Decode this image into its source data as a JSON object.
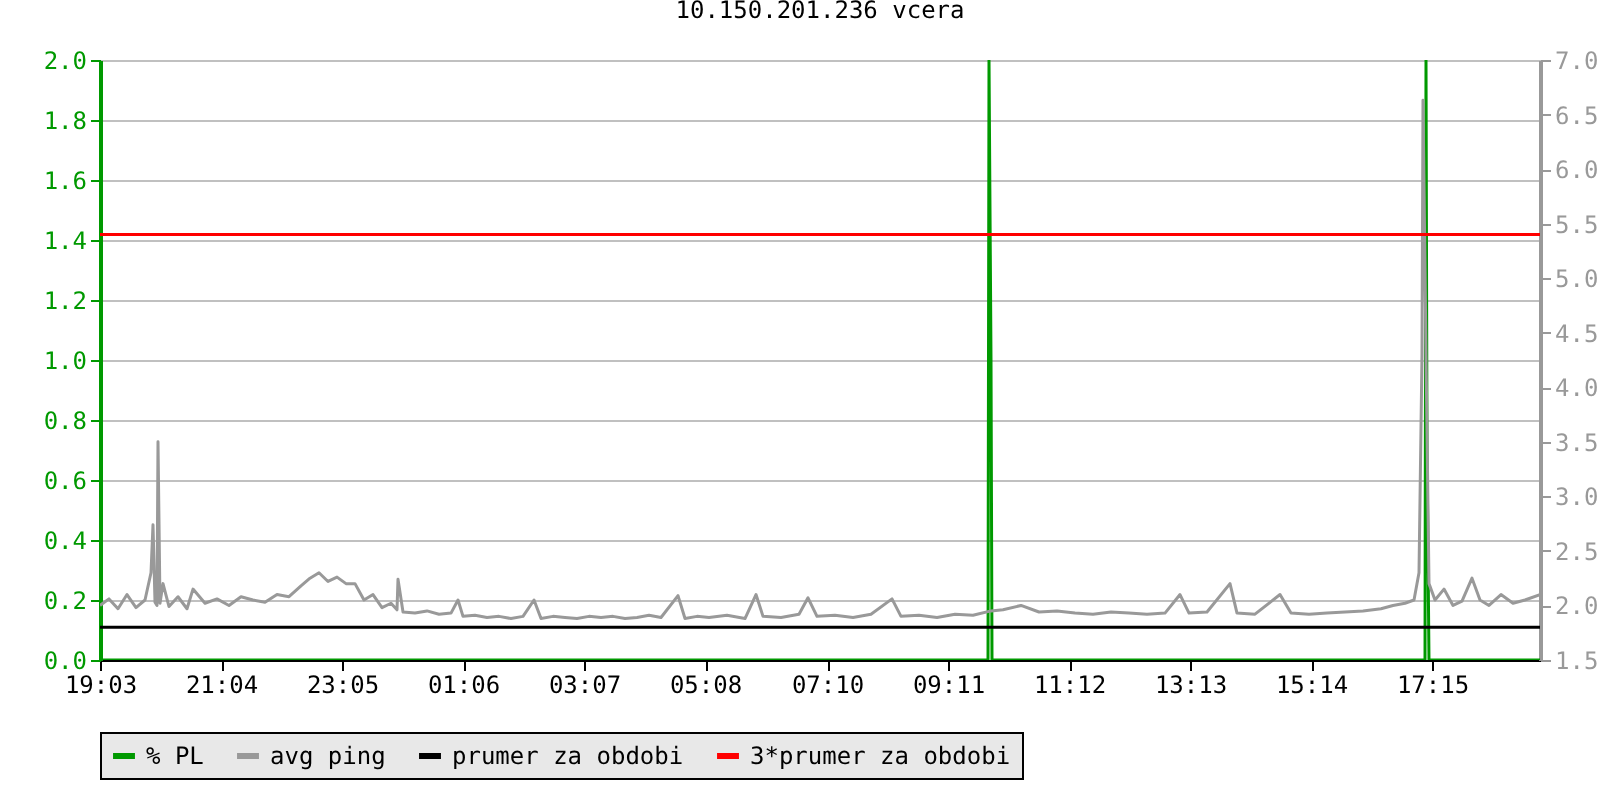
{
  "chart_data": {
    "type": "line",
    "title": "10.150.201.236 vcera",
    "xlim": [
      "--01-01T19:03",
      "--01-02T19:03"
    ],
    "xticks": [
      {
        "value": "--01-01T19:03",
        "label": "19:03"
      },
      {
        "value": "--01-01T21:04",
        "label": "21:04"
      },
      {
        "value": "--01-01T23:05",
        "label": "23:05"
      },
      {
        "value": "--01-02T01:06",
        "label": "01:06"
      },
      {
        "value": "--01-02T03:07",
        "label": "03:07"
      },
      {
        "value": "--01-02T05:08",
        "label": "05:08"
      },
      {
        "value": "--01-02T07:10",
        "label": "07:10"
      },
      {
        "value": "--01-02T09:11",
        "label": "09:11"
      },
      {
        "value": "--01-02T11:12",
        "label": "11:12"
      },
      {
        "value": "--01-02T13:13",
        "label": "13:13"
      },
      {
        "value": "--01-02T15:14",
        "label": "15:14"
      },
      {
        "value": "--01-02T17:15",
        "label": "17:15"
      }
    ],
    "ylim": [
      0,
      2
    ],
    "yticks": [
      {
        "value": 0,
        "label": "0.0"
      },
      0.2,
      0.4,
      0.6,
      0.8,
      {
        "value": 1,
        "label": "1.0"
      },
      1.2,
      1.4,
      1.6,
      1.8,
      {
        "value": 2,
        "label": "2.0"
      }
    ],
    "y2lim": [
      1.5,
      7
    ],
    "y2ticks": [
      1.5,
      {
        "value": 2,
        "label": "2.0"
      },
      2.5,
      {
        "value": 3,
        "label": "3.0"
      },
      3.5,
      {
        "value": 4,
        "label": "4.0"
      },
      4.5,
      {
        "value": 5,
        "label": "5.0"
      },
      5.5,
      {
        "value": 6,
        "label": "6.0"
      },
      6.5,
      {
        "value": 7,
        "label": "7.0"
      }
    ],
    "grid": "y",
    "legend": "bottom",
    "series": [
      {
        "name": "% PL",
        "color": "#009900",
        "x": [
          "--01-01T19:03",
          "--01-02T09:51",
          "--01-02T09:52",
          "--01-02T09:54",
          "--01-02T09:55",
          "--01-02T17:08",
          "--01-02T17:09",
          "--01-02T17:10",
          "--01-02T17:12",
          "--01-02T19:03"
        ],
        "values": [
          0,
          0,
          2.0,
          1.0,
          0,
          0,
          2.0,
          0.7,
          0,
          0
        ]
      },
      {
        "name": "avg ping",
        "color": "#999999",
        "axis": "y2",
        "x": [
          "--01-01T19:03",
          "--01-01T19:12",
          "--01-01T19:21",
          "--01-01T19:30",
          "--01-01T19:39",
          "--01-01T19:48",
          "--01-01T19:54",
          "--01-01T19:56",
          "--01-01T19:58",
          "--01-01T20:00",
          "--01-01T20:01",
          "--01-01T20:03",
          "--01-01T20:06",
          "--01-01T20:12",
          "--01-01T20:21",
          "--01-01T20:30",
          "--01-01T20:36",
          "--01-01T20:48",
          "--01-01T21:00",
          "--01-01T21:12",
          "--01-01T21:24",
          "--01-01T21:36",
          "--01-01T21:48",
          "--01-01T22:00",
          "--01-01T22:12",
          "--01-01T22:24",
          "--01-01T22:33",
          "--01-01T22:42",
          "--01-01T22:51",
          "--01-01T23:00",
          "--01-01T23:09",
          "--01-01T23:18",
          "--01-01T23:27",
          "--01-01T23:36",
          "--01-01T23:45",
          "--01-01T23:54",
          "--01-02T00:00",
          "--01-02T00:01",
          "--01-02T00:06",
          "--01-02T00:18",
          "--01-02T00:30",
          "--01-02T00:42",
          "--01-02T00:54",
          "--01-02T01:01",
          "--01-02T01:06",
          "--01-02T01:18",
          "--01-02T01:30",
          "--01-02T01:42",
          "--01-02T01:54",
          "--01-02T02:06",
          "--01-02T02:17",
          "--01-02T02:24",
          "--01-02T02:36",
          "--01-02T02:48",
          "--01-02T03:00",
          "--01-02T03:12",
          "--01-02T03:24",
          "--01-02T03:36",
          "--01-02T03:48",
          "--01-02T04:00",
          "--01-02T04:12",
          "--01-02T04:24",
          "--01-02T04:41",
          "--01-02T04:48",
          "--01-02T05:00",
          "--01-02T05:12",
          "--01-02T05:30",
          "--01-02T05:48",
          "--01-02T05:59",
          "--01-02T06:06",
          "--01-02T06:24",
          "--01-02T06:42",
          "--01-02T06:51",
          "--01-02T07:00",
          "--01-02T07:18",
          "--01-02T07:36",
          "--01-02T07:54",
          "--01-02T08:15",
          "--01-02T08:24",
          "--01-02T08:42",
          "--01-02T09:00",
          "--01-02T09:18",
          "--01-02T09:36",
          "--01-02T09:54",
          "--01-02T10:06",
          "--01-02T10:24",
          "--01-02T10:42",
          "--01-02T11:00",
          "--01-02T11:18",
          "--01-02T11:36",
          "--01-02T11:54",
          "--01-02T12:12",
          "--01-02T12:30",
          "--01-02T12:48",
          "--01-02T13:03",
          "--01-02T13:12",
          "--01-02T13:30",
          "--01-02T13:53",
          "--01-02T14:00",
          "--01-02T14:18",
          "--01-02T14:43",
          "--01-02T14:54",
          "--01-02T15:12",
          "--01-02T15:30",
          "--01-02T15:48",
          "--01-02T16:06",
          "--01-02T16:24",
          "--01-02T16:36",
          "--01-02T16:48",
          "--01-02T16:57",
          "--01-02T17:02",
          "--01-02T17:05",
          "--01-02T17:06",
          "--01-02T17:08",
          "--01-02T17:09",
          "--01-02T17:12",
          "--01-02T17:18",
          "--01-02T17:27",
          "--01-02T17:36",
          "--01-02T17:45",
          "--01-02T17:55",
          "--01-02T18:03",
          "--01-02T18:12",
          "--01-02T18:24",
          "--01-02T18:36",
          "--01-02T18:48",
          "--01-02T19:03"
        ],
        "values": [
          2.0,
          2.06,
          1.97,
          2.1,
          1.98,
          2.05,
          2.3,
          2.74,
          2.03,
          2.0,
          3.5,
          2.02,
          2.2,
          1.99,
          2.08,
          1.97,
          2.15,
          2.02,
          2.06,
          2.0,
          2.08,
          2.05,
          2.03,
          2.1,
          2.08,
          2.18,
          2.25,
          2.3,
          2.22,
          2.26,
          2.2,
          2.2,
          2.05,
          2.1,
          1.98,
          2.02,
          1.96,
          2.24,
          1.94,
          1.93,
          1.95,
          1.92,
          1.93,
          2.05,
          1.9,
          1.91,
          1.89,
          1.9,
          1.88,
          1.9,
          2.05,
          1.88,
          1.9,
          1.89,
          1.88,
          1.9,
          1.89,
          1.9,
          1.88,
          1.89,
          1.91,
          1.89,
          2.09,
          1.88,
          1.9,
          1.89,
          1.91,
          1.88,
          2.1,
          1.9,
          1.89,
          1.92,
          2.07,
          1.9,
          1.91,
          1.89,
          1.92,
          2.06,
          1.9,
          1.91,
          1.89,
          1.92,
          1.91,
          1.95,
          1.96,
          2.0,
          1.94,
          1.95,
          1.93,
          1.92,
          1.94,
          1.93,
          1.92,
          1.93,
          2.1,
          1.93,
          1.94,
          2.2,
          1.93,
          1.92,
          2.1,
          1.93,
          1.92,
          1.93,
          1.94,
          1.95,
          1.97,
          2.0,
          2.02,
          2.05,
          2.3,
          4.3,
          6.63,
          5.1,
          4.3,
          2.2,
          2.05,
          2.15,
          2.0,
          2.04,
          2.25,
          2.05,
          2.0,
          2.1,
          2.02,
          2.05,
          2.1
        ]
      },
      {
        "name": "prumer za obdobi",
        "color": "#000000",
        "axis": "y2",
        "x": [
          "--01-01T19:03",
          "--01-02T19:03"
        ],
        "values": [
          1.8,
          1.8
        ]
      },
      {
        "name": "3*prumer za obdobi",
        "color": "#ff0000",
        "axis": "y2",
        "x": [
          "--01-01T19:03",
          "--01-02T19:03"
        ],
        "values": [
          5.4,
          5.4
        ]
      }
    ]
  }
}
